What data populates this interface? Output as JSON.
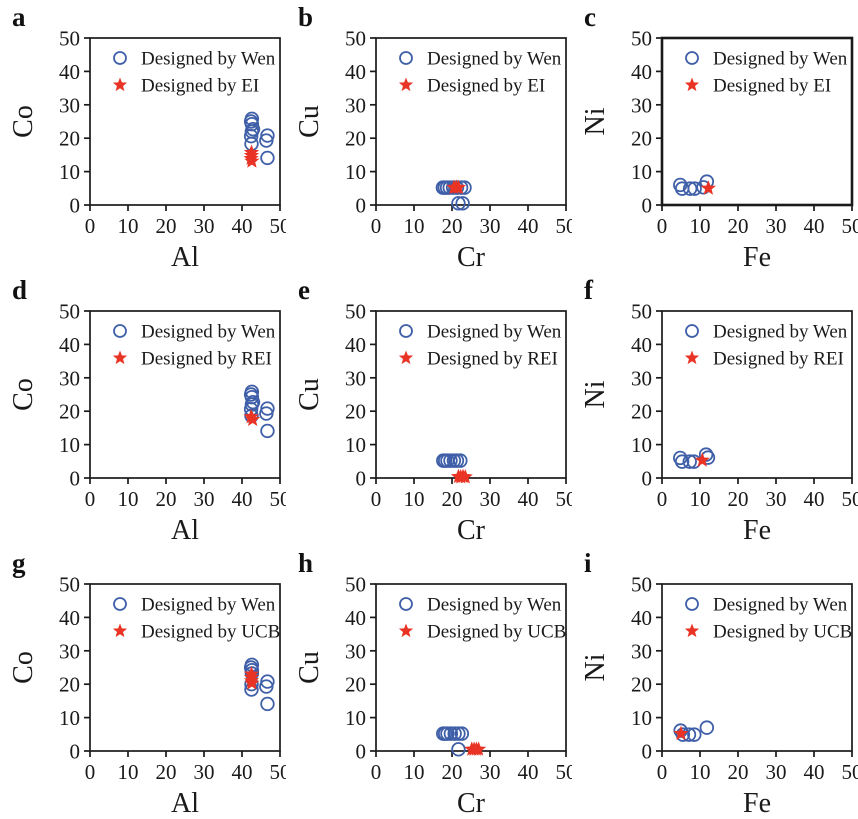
{
  "figure": {
    "background": "#ffffff",
    "circle_color": "#3f5fa8",
    "star_color": "#e93425",
    "axis_color": "#1a1a1a",
    "tick_values": [
      0,
      10,
      20,
      30,
      40,
      50
    ]
  },
  "chart_data": [
    {
      "panel": "a",
      "type": "scatter",
      "xlabel": "Al",
      "ylabel": "Co",
      "xlim": [
        0,
        50
      ],
      "ylim": [
        0,
        50
      ],
      "grid": false,
      "legend_position": "upper-left-inside",
      "frame_weight": 1.7,
      "legend": [
        {
          "label": "Designed by Wen",
          "marker": "circle"
        },
        {
          "label": "Designed by EI",
          "marker": "star"
        }
      ],
      "series": [
        {
          "name": "Designed by Wen",
          "marker": "circle",
          "points": [
            [
              42.6,
              25.8
            ],
            [
              42.4,
              25.0
            ],
            [
              42.6,
              24.2
            ],
            [
              42.9,
              22.7
            ],
            [
              42.6,
              22.0
            ],
            [
              42.4,
              20.6
            ],
            [
              42.5,
              18.3
            ],
            [
              46.7,
              20.8
            ],
            [
              46.4,
              19.3
            ],
            [
              46.7,
              14.1
            ]
          ]
        },
        {
          "name": "Designed by EI",
          "marker": "star",
          "points": [
            [
              42.5,
              15.7
            ],
            [
              42.5,
              14.8
            ],
            [
              42.4,
              13.9
            ],
            [
              42.6,
              13.1
            ]
          ]
        }
      ]
    },
    {
      "panel": "b",
      "type": "scatter",
      "xlabel": "Cr",
      "ylabel": "Cu",
      "xlim": [
        0,
        50
      ],
      "ylim": [
        0,
        50
      ],
      "grid": false,
      "legend_position": "upper-left-inside",
      "frame_weight": 1.7,
      "legend": [
        {
          "label": "Designed by Wen",
          "marker": "circle"
        },
        {
          "label": "Designed by EI",
          "marker": "star"
        }
      ],
      "series": [
        {
          "name": "Designed by Wen",
          "marker": "circle",
          "points": [
            [
              17.6,
              5.2
            ],
            [
              18.1,
              5.2
            ],
            [
              18.7,
              5.2
            ],
            [
              19.4,
              5.2
            ],
            [
              20.3,
              5.2
            ],
            [
              21.3,
              5.2
            ],
            [
              22.4,
              5.2
            ],
            [
              23.3,
              5.2
            ],
            [
              21.7,
              0.5
            ],
            [
              22.8,
              0.5
            ]
          ]
        },
        {
          "name": "Designed by EI",
          "marker": "star",
          "points": [
            [
              20.5,
              5.2
            ],
            [
              21.1,
              5.3
            ],
            [
              21.7,
              5.2
            ]
          ]
        }
      ]
    },
    {
      "panel": "c",
      "type": "scatter",
      "xlabel": "Fe",
      "ylabel": "Ni",
      "xlim": [
        0,
        50
      ],
      "ylim": [
        0,
        50
      ],
      "grid": false,
      "legend_position": "upper-left-inside",
      "frame_weight": 2.6,
      "legend": [
        {
          "label": "Designed by Wen",
          "marker": "circle"
        },
        {
          "label": "Designed by EI",
          "marker": "star"
        }
      ],
      "series": [
        {
          "name": "Designed by Wen",
          "marker": "circle",
          "points": [
            [
              4.8,
              6.0
            ],
            [
              5.3,
              4.9
            ],
            [
              7.4,
              4.9
            ],
            [
              8.6,
              4.9
            ],
            [
              10.9,
              5.3
            ],
            [
              11.8,
              7.0
            ]
          ]
        },
        {
          "name": "Designed by EI",
          "marker": "star",
          "points": [
            [
              12.2,
              5.0
            ]
          ]
        }
      ]
    },
    {
      "panel": "d",
      "type": "scatter",
      "xlabel": "Al",
      "ylabel": "Co",
      "xlim": [
        0,
        50
      ],
      "ylim": [
        0,
        50
      ],
      "grid": false,
      "legend_position": "upper-left-inside",
      "frame_weight": 1.7,
      "legend": [
        {
          "label": "Designed by Wen",
          "marker": "circle"
        },
        {
          "label": "Designed by REI",
          "marker": "star"
        }
      ],
      "series": [
        {
          "name": "Designed by Wen",
          "marker": "circle",
          "points": [
            [
              42.6,
              25.8
            ],
            [
              42.4,
              25.0
            ],
            [
              42.6,
              24.2
            ],
            [
              42.9,
              22.7
            ],
            [
              42.6,
              22.0
            ],
            [
              42.4,
              20.6
            ],
            [
              42.5,
              18.6
            ],
            [
              46.7,
              20.8
            ],
            [
              46.4,
              19.3
            ],
            [
              46.7,
              14.1
            ]
          ]
        },
        {
          "name": "Designed by REI",
          "marker": "star",
          "points": [
            [
              42.4,
              18.3
            ],
            [
              42.8,
              17.5
            ]
          ]
        }
      ]
    },
    {
      "panel": "e",
      "type": "scatter",
      "xlabel": "Cr",
      "ylabel": "Cu",
      "xlim": [
        0,
        50
      ],
      "ylim": [
        0,
        50
      ],
      "grid": false,
      "legend_position": "upper-left-inside",
      "frame_weight": 1.7,
      "legend": [
        {
          "label": "Designed by Wen",
          "marker": "circle"
        },
        {
          "label": "Designed by REI",
          "marker": "star"
        }
      ],
      "series": [
        {
          "name": "Designed by Wen",
          "marker": "circle",
          "points": [
            [
              17.7,
              5.2
            ],
            [
              18.2,
              5.2
            ],
            [
              18.8,
              5.2
            ],
            [
              19.6,
              5.2
            ],
            [
              20.5,
              5.2
            ],
            [
              21.3,
              5.2
            ],
            [
              22.2,
              5.2
            ]
          ]
        },
        {
          "name": "Designed by REI",
          "marker": "star",
          "points": [
            [
              21.7,
              0.4
            ],
            [
              22.3,
              0.3
            ],
            [
              22.9,
              0.4
            ],
            [
              23.5,
              0.3
            ]
          ]
        }
      ]
    },
    {
      "panel": "f",
      "type": "scatter",
      "xlabel": "Fe",
      "ylabel": "Ni",
      "xlim": [
        0,
        50
      ],
      "ylim": [
        0,
        50
      ],
      "grid": false,
      "legend_position": "upper-left-inside",
      "frame_weight": 1.7,
      "legend": [
        {
          "label": "Designed by Wen",
          "marker": "circle"
        },
        {
          "label": "Designed by REI",
          "marker": "star"
        }
      ],
      "series": [
        {
          "name": "Designed by Wen",
          "marker": "circle",
          "points": [
            [
              4.8,
              6.0
            ],
            [
              5.3,
              4.9
            ],
            [
              7.3,
              4.9
            ],
            [
              8.4,
              4.9
            ],
            [
              11.6,
              7.0
            ],
            [
              12.1,
              6.1
            ]
          ]
        },
        {
          "name": "Designed by REI",
          "marker": "star",
          "points": [
            [
              10.6,
              5.3
            ]
          ]
        }
      ]
    },
    {
      "panel": "g",
      "type": "scatter",
      "xlabel": "Al",
      "ylabel": "Co",
      "xlim": [
        0,
        50
      ],
      "ylim": [
        0,
        50
      ],
      "grid": false,
      "legend_position": "upper-left-inside",
      "frame_weight": 1.7,
      "legend": [
        {
          "label": "Designed by Wen",
          "marker": "circle"
        },
        {
          "label": "Designed by UCB",
          "marker": "star"
        }
      ],
      "series": [
        {
          "name": "Designed by Wen",
          "marker": "circle",
          "points": [
            [
              42.6,
              25.8
            ],
            [
              42.4,
              25.0
            ],
            [
              42.6,
              24.2
            ],
            [
              42.6,
              23.2
            ],
            [
              42.5,
              20.0
            ],
            [
              42.5,
              18.4
            ],
            [
              46.7,
              20.8
            ],
            [
              46.4,
              19.3
            ],
            [
              46.7,
              14.1
            ]
          ]
        },
        {
          "name": "Designed by UCB",
          "marker": "star",
          "points": [
            [
              42.5,
              23.0
            ],
            [
              42.5,
              22.0
            ],
            [
              42.5,
              21.0
            ],
            [
              42.6,
              20.3
            ]
          ]
        }
      ]
    },
    {
      "panel": "h",
      "type": "scatter",
      "xlabel": "Cr",
      "ylabel": "Cu",
      "xlim": [
        0,
        50
      ],
      "ylim": [
        0,
        50
      ],
      "grid": false,
      "legend_position": "upper-left-inside",
      "frame_weight": 1.7,
      "legend": [
        {
          "label": "Designed by Wen",
          "marker": "circle"
        },
        {
          "label": "Designed by UCB",
          "marker": "star"
        }
      ],
      "series": [
        {
          "name": "Designed by Wen",
          "marker": "circle",
          "points": [
            [
              17.7,
              5.2
            ],
            [
              18.2,
              5.2
            ],
            [
              18.8,
              5.2
            ],
            [
              19.7,
              5.2
            ],
            [
              20.7,
              5.2
            ],
            [
              21.7,
              5.2
            ],
            [
              22.6,
              5.2
            ],
            [
              21.7,
              0.5
            ]
          ]
        },
        {
          "name": "Designed by UCB",
          "marker": "star",
          "points": [
            [
              25.2,
              0.5
            ],
            [
              25.8,
              0.5
            ],
            [
              26.4,
              0.5
            ],
            [
              27.0,
              0.5
            ]
          ]
        }
      ]
    },
    {
      "panel": "i",
      "type": "scatter",
      "xlabel": "Fe",
      "ylabel": "Ni",
      "xlim": [
        0,
        50
      ],
      "ylim": [
        0,
        50
      ],
      "grid": false,
      "legend_position": "upper-left-inside",
      "frame_weight": 1.7,
      "legend": [
        {
          "label": "Designed by Wen",
          "marker": "circle"
        },
        {
          "label": "Designed by UCB",
          "marker": "star"
        }
      ],
      "series": [
        {
          "name": "Designed by Wen",
          "marker": "circle",
          "points": [
            [
              4.9,
              6.1
            ],
            [
              5.5,
              4.9
            ],
            [
              7.1,
              4.9
            ],
            [
              8.5,
              4.9
            ],
            [
              11.8,
              7.0
            ]
          ]
        },
        {
          "name": "Designed by UCB",
          "marker": "star",
          "points": [
            [
              5.0,
              5.2
            ]
          ]
        }
      ]
    }
  ]
}
